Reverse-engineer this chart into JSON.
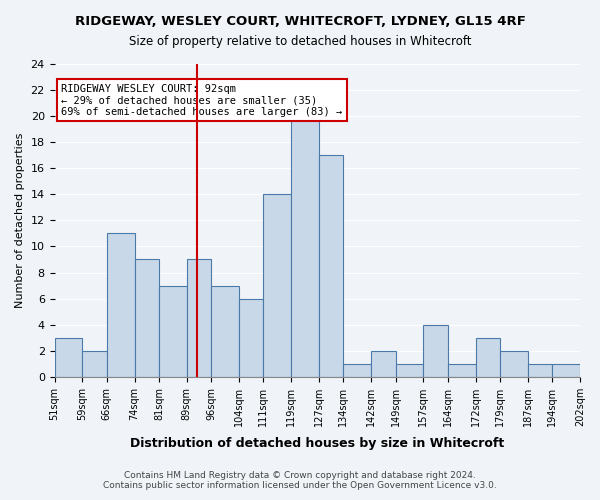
{
  "title": "RIDGEWAY, WESLEY COURT, WHITECROFT, LYDNEY, GL15 4RF",
  "subtitle": "Size of property relative to detached houses in Whitecroft",
  "xlabel": "Distribution of detached houses by size in Whitecroft",
  "ylabel": "Number of detached properties",
  "bin_labels": [
    "51sqm",
    "59sqm",
    "66sqm",
    "74sqm",
    "81sqm",
    "89sqm",
    "96sqm",
    "104sqm",
    "111sqm",
    "119sqm",
    "127sqm",
    "134sqm",
    "142sqm",
    "149sqm",
    "157sqm",
    "164sqm",
    "172sqm",
    "179sqm",
    "187sqm",
    "194sqm",
    "202sqm"
  ],
  "bin_edges": [
    51,
    59,
    66,
    74,
    81,
    89,
    96,
    104,
    111,
    119,
    127,
    134,
    142,
    149,
    157,
    164,
    172,
    179,
    187,
    194,
    202
  ],
  "counts": [
    3,
    2,
    11,
    9,
    7,
    9,
    7,
    6,
    14,
    20,
    17,
    1,
    2,
    1,
    4,
    1,
    3,
    2,
    1,
    1
  ],
  "bar_color": "#c8d8e8",
  "bar_edge_color": "#4a7aaa",
  "property_value": 92,
  "property_line_color": "#cc0000",
  "annotation_text": "RIDGEWAY WESLEY COURT: 92sqm\n← 29% of detached houses are smaller (35)\n69% of semi-detached houses are larger (83) →",
  "annotation_box_color": "white",
  "annotation_box_edge": "#cc0000",
  "ylim": [
    0,
    24
  ],
  "yticks": [
    0,
    2,
    4,
    6,
    8,
    10,
    12,
    14,
    16,
    18,
    20,
    22,
    24
  ],
  "footer_line1": "Contains HM Land Registry data © Crown copyright and database right 2024.",
  "footer_line2": "Contains public sector information licensed under the Open Government Licence v3.0.",
  "background_color": "#f0f4f8"
}
